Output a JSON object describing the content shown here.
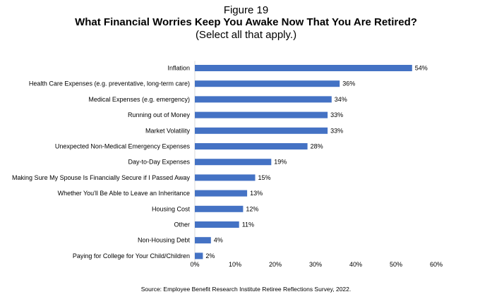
{
  "figure_label": "Figure 19",
  "source": "Source: Employee Benefit Research Institute Retiree Reflections Survey, 2022.",
  "chart_data": {
    "type": "bar",
    "orientation": "horizontal",
    "title": "What Financial Worries Keep You Awake Now That You Are Retired?",
    "subtitle": "(Select all that apply.)",
    "categories": [
      "Inflation",
      "Health Care Expenses (e.g. preventative, long-term care)",
      "Medical Expenses (e.g. emergency)",
      "Running out of Money",
      "Market Volatility",
      "Unexpected Non-Medical Emergency Expenses",
      "Day-to-Day Expenses",
      "Making Sure My Spouse Is Financially Secure if I Passed Away",
      "Whether You'll Be Able to Leave an Inheritance",
      "Housing Cost",
      "Other",
      "Non-Housing Debt",
      "Paying for College for Your Child/Children"
    ],
    "values": [
      54,
      36,
      34,
      33,
      33,
      28,
      19,
      15,
      13,
      12,
      11,
      4,
      2
    ],
    "value_labels": [
      "54%",
      "36%",
      "34%",
      "33%",
      "33%",
      "28%",
      "19%",
      "15%",
      "13%",
      "12%",
      "11%",
      "4%",
      "2%"
    ],
    "xlim": [
      0,
      60
    ],
    "xticks": [
      "0%",
      "10%",
      "20%",
      "30%",
      "40%",
      "50%",
      "60%"
    ],
    "xlabel": "",
    "ylabel": "",
    "grid": false,
    "legend": "none",
    "bar_color": "#4472C4"
  }
}
